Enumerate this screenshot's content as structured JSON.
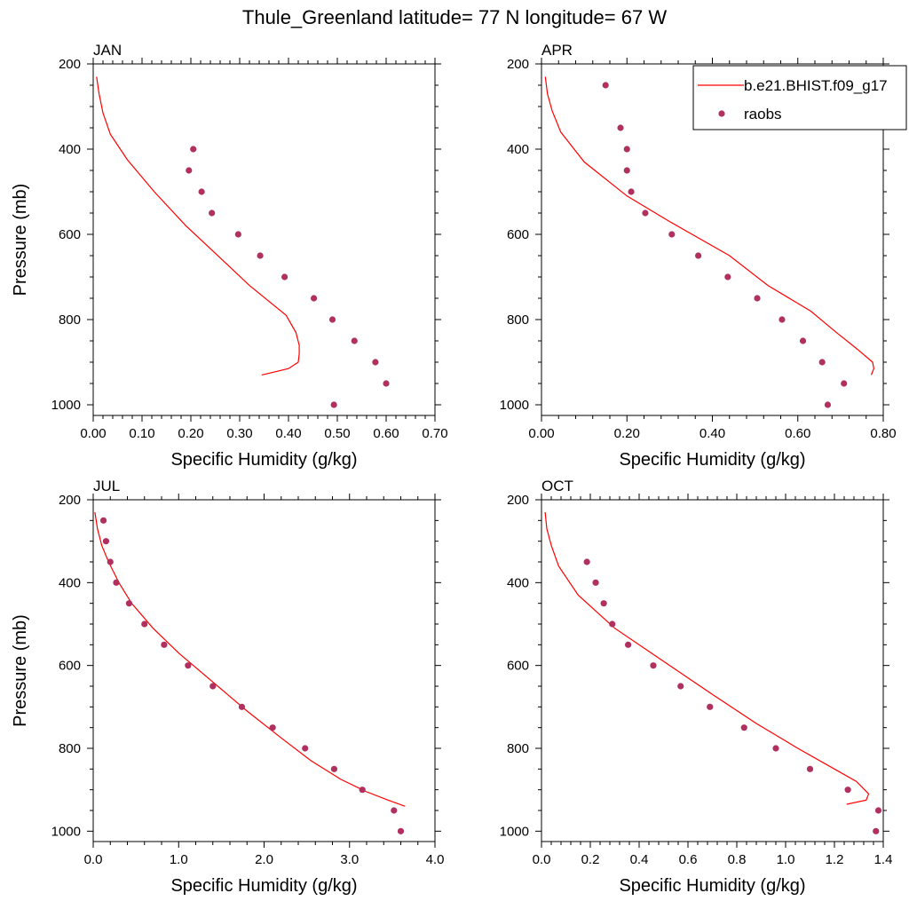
{
  "figure_title": "Thule_Greenland  latitude= 77 N longitude= 67 W",
  "legend": {
    "model_label": "b.e21.BHIST.f09_g17",
    "obs_label": "raobs",
    "model_color": "#ff0000",
    "obs_color": "#b03060"
  },
  "chart_data": [
    {
      "type": "line",
      "title": "JAN",
      "xlabel": "Specific Humidity (g/kg)",
      "ylabel": "Pressure (mb)",
      "xlim": [
        0,
        0.7
      ],
      "ylim": [
        200,
        1025
      ],
      "y_reversed": true,
      "xticks": [
        "0.00",
        "0.10",
        "0.20",
        "0.30",
        "0.40",
        "0.50",
        "0.60",
        "0.70"
      ],
      "yticks": [
        "200",
        "400",
        "600",
        "800",
        "1000"
      ],
      "series": [
        {
          "name": "b.e21.BHIST.f09_g17",
          "kind": "line",
          "x": [
            0.007,
            0.012,
            0.02,
            0.035,
            0.07,
            0.125,
            0.19,
            0.26,
            0.32,
            0.395,
            0.415,
            0.422,
            0.422,
            0.42,
            0.4,
            0.345
          ],
          "y": [
            230,
            270,
            315,
            365,
            425,
            500,
            580,
            655,
            720,
            790,
            830,
            860,
            880,
            900,
            915,
            930
          ]
        },
        {
          "name": "raobs",
          "kind": "scatter",
          "x": [
            0.205,
            0.196,
            0.222,
            0.243,
            0.297,
            0.342,
            0.392,
            0.452,
            0.49,
            0.535,
            0.578,
            0.6,
            0.493
          ],
          "y": [
            400,
            450,
            500,
            550,
            600,
            650,
            700,
            750,
            800,
            850,
            900,
            950,
            1000
          ]
        }
      ]
    },
    {
      "type": "line",
      "title": "APR",
      "xlabel": "Specific Humidity (g/kg)",
      "ylabel": "",
      "xlim": [
        0,
        0.8
      ],
      "ylim": [
        200,
        1025
      ],
      "y_reversed": true,
      "xticks": [
        "0.00",
        "0.20",
        "0.40",
        "0.60",
        "0.80"
      ],
      "yticks": [
        "200",
        "400",
        "600",
        "800",
        "1000"
      ],
      "series": [
        {
          "name": "b.e21.BHIST.f09_g17",
          "kind": "line",
          "x": [
            0.009,
            0.014,
            0.025,
            0.045,
            0.1,
            0.2,
            0.3,
            0.44,
            0.53,
            0.63,
            0.69,
            0.74,
            0.775,
            0.778,
            0.772
          ],
          "y": [
            230,
            270,
            310,
            360,
            430,
            510,
            570,
            650,
            720,
            780,
            830,
            870,
            900,
            915,
            930
          ]
        },
        {
          "name": "raobs",
          "kind": "scatter",
          "x": [
            0.15,
            0.185,
            0.2,
            0.2,
            0.21,
            0.243,
            0.305,
            0.367,
            0.436,
            0.505,
            0.563,
            0.612,
            0.657,
            0.708,
            0.67
          ],
          "y": [
            250,
            350,
            400,
            450,
            500,
            550,
            600,
            650,
            700,
            750,
            800,
            850,
            900,
            950,
            1000
          ]
        }
      ]
    },
    {
      "type": "line",
      "title": "JUL",
      "xlabel": "Specific Humidity (g/kg)",
      "ylabel": "Pressure (mb)",
      "xlim": [
        0,
        4.0
      ],
      "ylim": [
        200,
        1025
      ],
      "y_reversed": true,
      "xticks": [
        "0.0",
        "1.0",
        "2.0",
        "3.0",
        "4.0"
      ],
      "yticks": [
        "200",
        "400",
        "600",
        "800",
        "1000"
      ],
      "series": [
        {
          "name": "b.e21.BHIST.f09_g17",
          "kind": "line",
          "x": [
            0.02,
            0.05,
            0.1,
            0.18,
            0.3,
            0.45,
            0.7,
            1.0,
            1.4,
            1.8,
            2.2,
            2.55,
            2.9,
            3.2,
            3.45,
            3.65
          ],
          "y": [
            230,
            270,
            310,
            350,
            400,
            450,
            510,
            570,
            640,
            710,
            775,
            830,
            875,
            905,
            925,
            940
          ]
        },
        {
          "name": "raobs",
          "kind": "scatter",
          "x": [
            0.12,
            0.15,
            0.2,
            0.27,
            0.42,
            0.6,
            0.83,
            1.11,
            1.4,
            1.74,
            2.1,
            2.48,
            2.82,
            3.15,
            3.52,
            3.6
          ],
          "y": [
            250,
            300,
            350,
            400,
            450,
            500,
            550,
            600,
            650,
            700,
            750,
            800,
            850,
            900,
            950,
            1000
          ]
        }
      ]
    },
    {
      "type": "line",
      "title": "OCT",
      "xlabel": "Specific Humidity (g/kg)",
      "ylabel": "",
      "xlim": [
        0,
        1.4
      ],
      "ylim": [
        200,
        1025
      ],
      "y_reversed": true,
      "xticks": [
        "0.0",
        "0.2",
        "0.4",
        "0.6",
        "0.8",
        "1.0",
        "1.2",
        "1.4"
      ],
      "yticks": [
        "200",
        "400",
        "600",
        "800",
        "1000"
      ],
      "series": [
        {
          "name": "b.e21.BHIST.f09_g17",
          "kind": "line",
          "x": [
            0.015,
            0.022,
            0.04,
            0.07,
            0.15,
            0.3,
            0.5,
            0.7,
            0.88,
            1.05,
            1.2,
            1.29,
            1.34,
            1.33,
            1.25
          ],
          "y": [
            230,
            270,
            310,
            360,
            430,
            510,
            590,
            670,
            740,
            800,
            850,
            880,
            910,
            925,
            935
          ]
        },
        {
          "name": "raobs",
          "kind": "scatter",
          "x": [
            0.186,
            0.222,
            0.255,
            0.29,
            0.355,
            0.458,
            0.57,
            0.69,
            0.83,
            0.96,
            1.1,
            1.255,
            1.38,
            1.37
          ],
          "y": [
            350,
            400,
            450,
            500,
            550,
            600,
            650,
            700,
            750,
            800,
            850,
            900,
            950,
            1000
          ]
        }
      ]
    }
  ]
}
